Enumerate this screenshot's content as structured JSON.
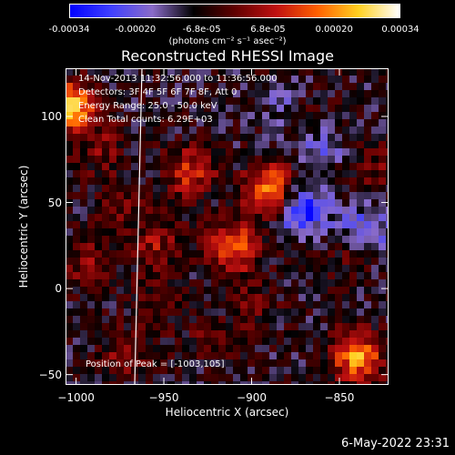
{
  "colorbar": {
    "ticks": [
      "-0.00034",
      "-0.00020",
      "-6.8e-05",
      "6.8e-05",
      "0.00020",
      "0.00034"
    ],
    "unit_label": "(photons cm⁻² s⁻¹ asec⁻²)",
    "colors": [
      "#0000ff",
      "#4040ff",
      "#8a6bc8",
      "#000000",
      "#600000",
      "#c01010",
      "#ff6000",
      "#ffd020",
      "#ffffff"
    ]
  },
  "annotations": {
    "line1": "14-Nov-2013 11:32:56.000 to 11:36:56.000",
    "line2": "Detectors: 3F 4F 5F 6F 7F 8F, Att 0",
    "line3": "Energy Range: 25.0 - 50.0 keV",
    "line4": "Clean    Total counts: 6.29E+03",
    "peak": "Position of Peak = [-1003,105]"
  },
  "timestamp": "6-May-2022 23:31",
  "chart_data": {
    "type": "heatmap",
    "title": "Reconstructed RHESSI Image",
    "xlabel": "Heliocentric X (arcsec)",
    "ylabel": "Heliocentric Y (arcsec)",
    "xlim": [
      -1006,
      -822
    ],
    "ylim": [
      -56,
      128
    ],
    "xticks": [
      -1000,
      -950,
      -900,
      -850
    ],
    "yticks": [
      -50,
      0,
      50,
      100
    ],
    "colorbar_range": [
      -0.00034,
      0.00034
    ],
    "peak_position": [
      -1003,
      105
    ],
    "sources": [
      {
        "x": -1003,
        "y": 105,
        "value": 0.00034
      },
      {
        "x": -890,
        "y": 58,
        "value": 0.00026
      },
      {
        "x": -910,
        "y": 24,
        "value": 0.00024
      },
      {
        "x": -935,
        "y": 68,
        "value": 0.00018
      },
      {
        "x": -840,
        "y": -40,
        "value": 0.00028
      },
      {
        "x": -955,
        "y": 25,
        "value": 0.00012
      },
      {
        "x": -995,
        "y": 15,
        "value": 0.0001
      },
      {
        "x": -975,
        "y": -40,
        "value": 9e-05
      },
      {
        "x": -865,
        "y": 100,
        "value": 8e-05
      },
      {
        "x": -830,
        "y": 70,
        "value": 8e-05
      },
      {
        "x": -985,
        "y": 80,
        "value": 9e-05
      },
      {
        "x": -900,
        "y": -10,
        "value": 7e-05
      },
      {
        "x": -845,
        "y": 20,
        "value": 6e-05
      },
      {
        "x": -955,
        "y": -10,
        "value": 7e-05
      },
      {
        "x": -975,
        "y": 50,
        "value": 8e-05
      },
      {
        "x": -925,
        "y": -30,
        "value": 6e-05
      },
      {
        "x": -870,
        "y": 45,
        "value": -0.00022
      },
      {
        "x": -835,
        "y": 35,
        "value": -0.00015
      },
      {
        "x": -860,
        "y": 85,
        "value": -0.00012
      },
      {
        "x": -880,
        "y": 105,
        "value": -8e-05
      }
    ]
  }
}
